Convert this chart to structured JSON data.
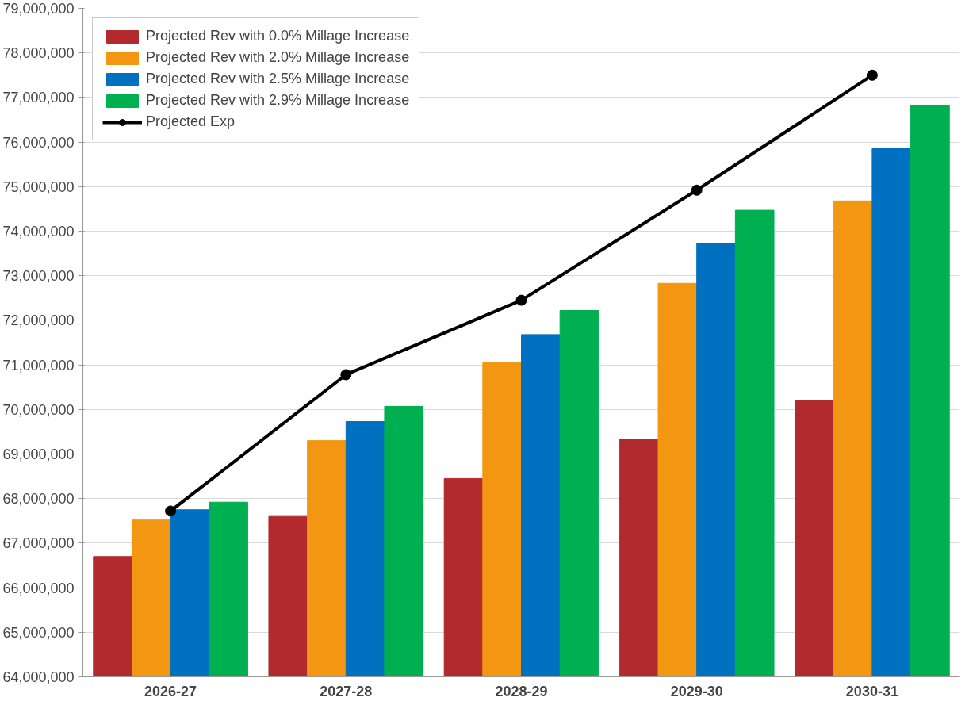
{
  "chart_data": {
    "type": "bar",
    "categories": [
      "2026-27",
      "2027-28",
      "2028-29",
      "2029-30",
      "2030-31"
    ],
    "series": [
      {
        "name": "Projected Rev with 0.0% Millage Increase",
        "color": "#b22a2e",
        "values": [
          66700000,
          67600000,
          68450000,
          69330000,
          70200000
        ]
      },
      {
        "name": "Projected Rev with 2.0% Millage Increase",
        "color": "#f39712",
        "values": [
          67520000,
          69300000,
          71050000,
          72830000,
          74680000
        ]
      },
      {
        "name": "Projected Rev with 2.5% Millage Increase",
        "color": "#0070c0",
        "values": [
          67750000,
          69730000,
          71680000,
          73730000,
          75850000
        ]
      },
      {
        "name": "Projected Rev with 2.9% Millage Increase",
        "color": "#00b050",
        "values": [
          67920000,
          70070000,
          72220000,
          74470000,
          76830000
        ]
      },
      {
        "name": "Projected Exp",
        "type": "line",
        "color": "#000000",
        "marker": "circle",
        "values": [
          67720000,
          70780000,
          72450000,
          74920000,
          77500000
        ]
      }
    ],
    "ylim": [
      64000000,
      79000000
    ],
    "yticks": [
      {
        "value": 64000000,
        "label": "64,000,000"
      },
      {
        "value": 65000000,
        "label": "65,000,000"
      },
      {
        "value": 66000000,
        "label": "66,000,000"
      },
      {
        "value": 67000000,
        "label": "67,000,000"
      },
      {
        "value": 68000000,
        "label": "68,000,000"
      },
      {
        "value": 69000000,
        "label": "69,000,000"
      },
      {
        "value": 70000000,
        "label": "70,000,000"
      },
      {
        "value": 71000000,
        "label": "71,000,000"
      },
      {
        "value": 72000000,
        "label": "72,000,000"
      },
      {
        "value": 73000000,
        "label": "73,000,000"
      },
      {
        "value": 74000000,
        "label": "74,000,000"
      },
      {
        "value": 75000000,
        "label": "75,000,000"
      },
      {
        "value": 76000000,
        "label": "76,000,000"
      },
      {
        "value": 77000000,
        "label": "77,000,000"
      },
      {
        "value": 78000000,
        "label": "78,000,000"
      },
      {
        "value": 79000000,
        "label": "79,000,000"
      }
    ],
    "grid": "y",
    "legend": "top left"
  }
}
